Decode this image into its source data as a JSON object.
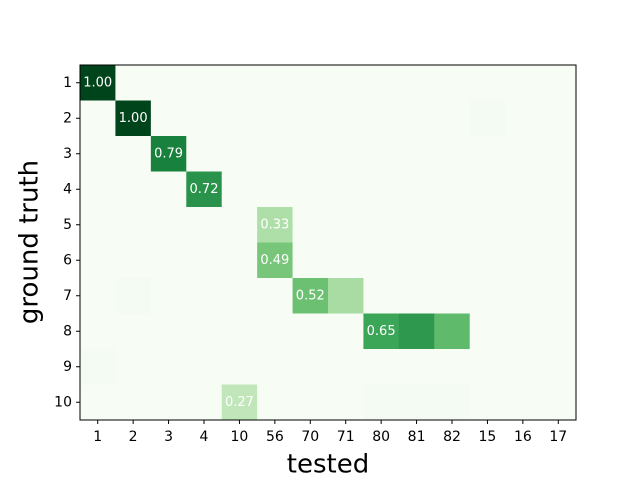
{
  "chart_data": {
    "type": "heatmap",
    "xlabel": "tested",
    "ylabel": "ground truth",
    "x_categories": [
      "1",
      "2",
      "3",
      "4",
      "10",
      "56",
      "70",
      "71",
      "80",
      "81",
      "82",
      "15",
      "16",
      "17"
    ],
    "y_categories": [
      "1",
      "2",
      "3",
      "4",
      "5",
      "6",
      "7",
      "8",
      "9",
      "10"
    ],
    "values": [
      [
        1,
        0,
        0,
        0,
        0,
        0,
        0,
        0,
        0,
        0,
        0,
        0,
        0,
        0
      ],
      [
        0,
        1,
        0,
        0,
        0,
        0,
        0,
        0,
        0,
        0,
        0,
        0.02,
        0,
        0
      ],
      [
        0,
        0,
        0.79,
        0,
        0,
        0,
        0,
        0,
        0,
        0,
        0,
        0,
        0,
        0
      ],
      [
        0,
        0,
        0,
        0.72,
        0,
        0,
        0,
        0,
        0,
        0,
        0,
        0,
        0,
        0
      ],
      [
        0,
        0,
        0,
        0,
        0,
        0.33,
        0,
        0,
        0,
        0,
        0,
        0,
        0,
        0
      ],
      [
        0,
        0,
        0,
        0,
        0,
        0.49,
        0,
        0,
        0,
        0,
        0,
        0,
        0,
        0
      ],
      [
        0,
        0.02,
        0,
        0,
        0,
        0,
        0.52,
        0.35,
        0,
        0,
        0,
        0,
        0,
        0
      ],
      [
        0,
        0,
        0,
        0,
        0,
        0,
        0,
        0,
        0.65,
        0.7,
        0.55,
        0,
        0,
        0
      ],
      [
        0.02,
        0,
        0,
        0,
        0,
        0,
        0,
        0,
        0,
        0,
        0,
        0,
        0,
        0
      ],
      [
        0,
        0,
        0,
        0,
        0.27,
        0,
        0,
        0,
        0.02,
        0.02,
        0.02,
        0,
        0,
        0
      ]
    ],
    "value_labels": [
      [
        "1.00",
        null,
        null,
        null,
        null,
        null,
        null,
        null,
        null,
        null,
        null,
        null,
        null,
        null
      ],
      [
        null,
        "1.00",
        null,
        null,
        null,
        null,
        null,
        null,
        null,
        null,
        null,
        null,
        null,
        null
      ],
      [
        null,
        null,
        "0.79",
        null,
        null,
        null,
        null,
        null,
        null,
        null,
        null,
        null,
        null,
        null
      ],
      [
        null,
        null,
        null,
        "0.72",
        null,
        null,
        null,
        null,
        null,
        null,
        null,
        null,
        null,
        null
      ],
      [
        null,
        null,
        null,
        null,
        null,
        "0.33",
        null,
        null,
        null,
        null,
        null,
        null,
        null,
        null
      ],
      [
        null,
        null,
        null,
        null,
        null,
        "0.49",
        null,
        null,
        null,
        null,
        null,
        null,
        null,
        null
      ],
      [
        null,
        null,
        null,
        null,
        null,
        null,
        "0.52",
        null,
        null,
        null,
        null,
        null,
        null,
        null
      ],
      [
        null,
        null,
        null,
        null,
        null,
        null,
        null,
        null,
        "0.65",
        null,
        null,
        null,
        null,
        null
      ],
      [
        null,
        null,
        null,
        null,
        null,
        null,
        null,
        null,
        null,
        null,
        null,
        null,
        null,
        null
      ],
      [
        null,
        null,
        null,
        null,
        "0.27",
        null,
        null,
        null,
        null,
        null,
        null,
        null,
        null,
        null
      ]
    ],
    "zlim": [
      0,
      1
    ],
    "colorscale": [
      "#f7fcf5",
      "#e5f5e0",
      "#c7e9c0",
      "#a1d99b",
      "#74c476",
      "#41ab5d",
      "#238b45",
      "#006d2c",
      "#00441b"
    ]
  }
}
